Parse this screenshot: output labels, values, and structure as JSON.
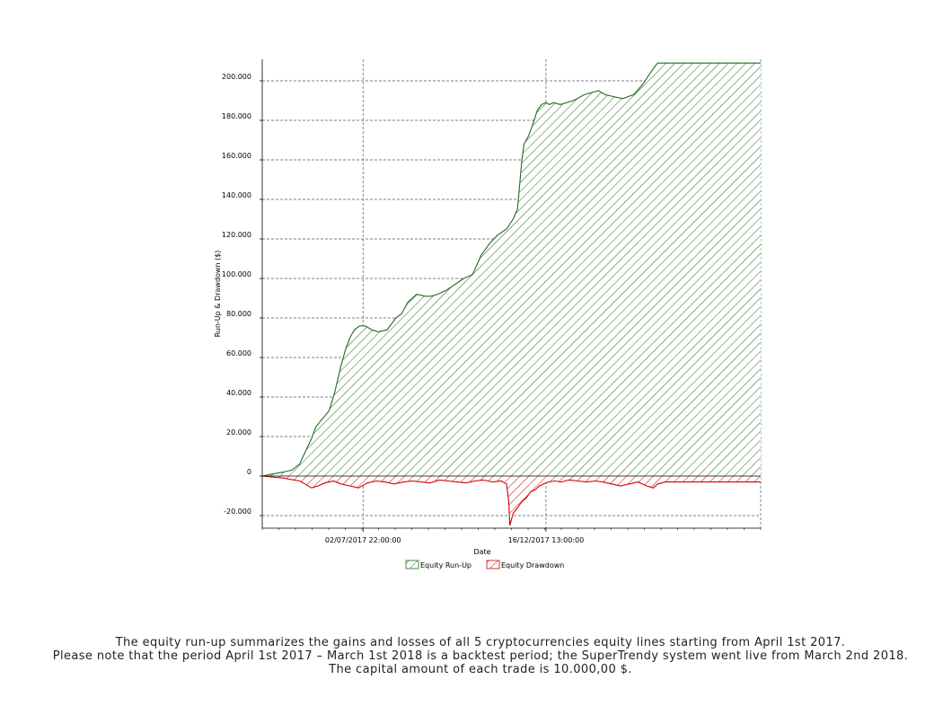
{
  "chart_data": {
    "type": "area",
    "title": "",
    "xlabel": "Date",
    "ylabel": "Run-Up & Drawdown ($)",
    "ylim": [
      -25000,
      212000
    ],
    "y_ticks": [
      -20000,
      0,
      20000,
      40000,
      60000,
      80000,
      100000,
      120000,
      140000,
      160000,
      180000,
      200000
    ],
    "y_tick_labels": [
      "-20.000",
      "0",
      "20.000",
      "40.000",
      "60.000",
      "80.000",
      "100.000",
      "120.000",
      "140.000",
      "160.000",
      "180.000",
      "200.000"
    ],
    "x_range": [
      "2017-04-01",
      "2018-06-30"
    ],
    "x_tick_labels": [
      "02/07/2017 22:00:00",
      "16/12/2017 13:00:00"
    ],
    "x_tick_dates": [
      "2017-07-02",
      "2017-12-16"
    ],
    "grid": true,
    "legend": {
      "placement": "bottom-center",
      "entries": [
        "Equity Run-Up",
        "Equity Drawdown"
      ]
    },
    "colors": {
      "run_up": "#1f6b1f",
      "drawdown": "#d00000",
      "grid": "#555555"
    },
    "series": [
      {
        "name": "Equity Run-Up",
        "x": [
          "2017-04-01",
          "2017-04-10",
          "2017-04-20",
          "2017-04-28",
          "2017-05-05",
          "2017-05-10",
          "2017-05-16",
          "2017-05-20",
          "2017-05-26",
          "2017-06-01",
          "2017-06-06",
          "2017-06-12",
          "2017-06-16",
          "2017-06-20",
          "2017-06-24",
          "2017-06-29",
          "2017-07-04",
          "2017-07-10",
          "2017-07-16",
          "2017-07-24",
          "2017-08-01",
          "2017-08-06",
          "2017-08-12",
          "2017-08-20",
          "2017-08-28",
          "2017-09-02",
          "2017-09-08",
          "2017-09-16",
          "2017-09-24",
          "2017-10-02",
          "2017-10-10",
          "2017-10-18",
          "2017-10-26",
          "2017-11-02",
          "2017-11-10",
          "2017-11-16",
          "2017-11-20",
          "2017-11-24",
          "2017-11-26",
          "2017-11-30",
          "2017-12-04",
          "2017-12-08",
          "2017-12-12",
          "2017-12-16",
          "2017-12-19",
          "2017-12-23",
          "2017-12-29",
          "2018-01-10",
          "2018-01-20",
          "2018-02-02",
          "2018-02-08",
          "2018-02-16",
          "2018-02-24",
          "2018-03-06",
          "2018-03-14",
          "2018-03-20",
          "2018-03-25",
          "2018-03-28",
          "2018-04-04",
          "2018-04-12",
          "2018-04-20",
          "2018-05-02",
          "2018-05-20",
          "2018-06-10",
          "2018-06-30"
        ],
        "values": [
          0,
          1000,
          2000,
          3000,
          6000,
          12000,
          19000,
          25000,
          29000,
          33000,
          42000,
          56000,
          64000,
          70000,
          74000,
          76000,
          76000,
          74000,
          73000,
          74000,
          80000,
          82000,
          88000,
          92000,
          91000,
          91000,
          92000,
          94000,
          97000,
          100000,
          102000,
          112000,
          118000,
          122000,
          125000,
          130000,
          135000,
          160000,
          168000,
          172000,
          178000,
          185000,
          188000,
          189000,
          188000,
          189000,
          188000,
          190000,
          193000,
          195000,
          193000,
          192000,
          191000,
          193000,
          198000,
          203000,
          207000,
          209000,
          209000,
          209000,
          209000,
          209000,
          209000,
          209000,
          209000
        ]
      },
      {
        "name": "Equity Drawdown",
        "x": [
          "2017-04-01",
          "2017-04-20",
          "2017-05-05",
          "2017-05-10",
          "2017-05-16",
          "2017-05-22",
          "2017-05-28",
          "2017-06-05",
          "2017-06-12",
          "2017-06-20",
          "2017-06-28",
          "2017-07-06",
          "2017-07-14",
          "2017-07-22",
          "2017-07-30",
          "2017-08-08",
          "2017-08-16",
          "2017-08-24",
          "2017-09-01",
          "2017-09-10",
          "2017-09-18",
          "2017-09-26",
          "2017-10-04",
          "2017-10-12",
          "2017-10-20",
          "2017-10-28",
          "2017-11-05",
          "2017-11-10",
          "2017-11-12",
          "2017-11-13",
          "2017-11-16",
          "2017-11-20",
          "2017-11-24",
          "2017-11-28",
          "2017-12-02",
          "2017-12-06",
          "2017-12-10",
          "2017-12-14",
          "2017-12-18",
          "2017-12-24",
          "2017-12-30",
          "2018-01-06",
          "2018-01-14",
          "2018-01-22",
          "2018-01-30",
          "2018-02-06",
          "2018-02-14",
          "2018-02-22",
          "2018-03-02",
          "2018-03-10",
          "2018-03-18",
          "2018-03-24",
          "2018-03-28",
          "2018-04-04",
          "2018-04-12",
          "2018-04-20",
          "2018-05-02",
          "2018-05-20",
          "2018-06-10",
          "2018-06-30"
        ],
        "values": [
          0,
          -1000,
          -2500,
          -4000,
          -6000,
          -5000,
          -3500,
          -2500,
          -4000,
          -5000,
          -6000,
          -3500,
          -2500,
          -3000,
          -4000,
          -3000,
          -2500,
          -3000,
          -3500,
          -2000,
          -2500,
          -3000,
          -3500,
          -2500,
          -2000,
          -3000,
          -2500,
          -4000,
          -13000,
          -25000,
          -19000,
          -16000,
          -13000,
          -11000,
          -8000,
          -7000,
          -5000,
          -4000,
          -3000,
          -2500,
          -3000,
          -2000,
          -2500,
          -3000,
          -2500,
          -3000,
          -4000,
          -5000,
          -4000,
          -3000,
          -5000,
          -6000,
          -4000,
          -3000,
          -3000,
          -3000,
          -3000,
          -3000,
          -3000,
          -3000
        ]
      }
    ]
  },
  "caption": {
    "line1": "The equity run-up summarizes the gains and losses of all 5 cryptocurrencies equity lines starting from April 1st 2017.",
    "line2": "Please note that the period April 1st 2017 – March 1st 2018 is a backtest period; the SuperTrendy system went live from March 2nd 2018.",
    "line3": "The capital amount of each trade is 10.000,00 $."
  }
}
